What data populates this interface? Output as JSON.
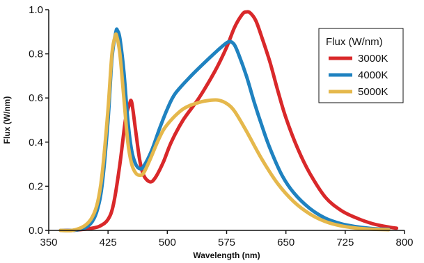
{
  "chart_data": {
    "type": "line",
    "xlabel": "Wavelength (nm)",
    "ylabel": "Flux (W/nm)",
    "xlim": [
      350,
      800
    ],
    "ylim": [
      0,
      1.0
    ],
    "x_ticks": [
      "350",
      "425",
      "500",
      "575",
      "650",
      "725",
      "800"
    ],
    "y_ticks": [
      "0.0",
      "0.2",
      "0.4",
      "0.6",
      "0.8",
      "1.0"
    ],
    "grid": false,
    "legend": {
      "title": "Flux (W/nm)",
      "position": "top-right"
    },
    "series": [
      {
        "name": "3000K",
        "color": "#d9282a",
        "x": [
          365,
          380,
          395,
          405,
          415,
          425,
          432,
          440,
          447,
          452,
          455,
          460,
          465,
          470,
          478,
          485,
          495,
          505,
          520,
          540,
          560,
          575,
          585,
          595,
          600,
          605,
          612,
          620,
          630,
          640,
          650,
          665,
          680,
          700,
          720,
          740,
          760,
          780,
          790
        ],
        "y": [
          0.0,
          0.0,
          0.005,
          0.01,
          0.02,
          0.05,
          0.12,
          0.3,
          0.5,
          0.57,
          0.58,
          0.45,
          0.32,
          0.25,
          0.22,
          0.24,
          0.31,
          0.4,
          0.5,
          0.6,
          0.72,
          0.83,
          0.92,
          0.98,
          0.99,
          0.985,
          0.95,
          0.87,
          0.76,
          0.63,
          0.51,
          0.37,
          0.26,
          0.15,
          0.09,
          0.055,
          0.03,
          0.015,
          0.01
        ]
      },
      {
        "name": "4000K",
        "color": "#1f82c0",
        "x": [
          365,
          380,
          395,
          405,
          412,
          418,
          425,
          430,
          435,
          437,
          440,
          445,
          450,
          455,
          460,
          465,
          470,
          480,
          490,
          500,
          510,
          530,
          550,
          565,
          575,
          580,
          585,
          590,
          600,
          610,
          620,
          630,
          645,
          660,
          680,
          700,
          720,
          740,
          760,
          780
        ],
        "y": [
          0.0,
          0.0,
          0.01,
          0.04,
          0.1,
          0.22,
          0.5,
          0.78,
          0.9,
          0.905,
          0.87,
          0.72,
          0.5,
          0.36,
          0.3,
          0.28,
          0.29,
          0.36,
          0.46,
          0.55,
          0.62,
          0.7,
          0.77,
          0.82,
          0.85,
          0.855,
          0.84,
          0.8,
          0.7,
          0.58,
          0.47,
          0.37,
          0.25,
          0.17,
          0.1,
          0.055,
          0.03,
          0.016,
          0.008,
          0.005
        ]
      },
      {
        "name": "5000K",
        "color": "#e5b84c",
        "x": [
          365,
          380,
          395,
          405,
          412,
          418,
          425,
          430,
          434,
          436,
          440,
          445,
          450,
          455,
          460,
          465,
          470,
          478,
          490,
          500,
          520,
          540,
          555,
          565,
          575,
          585,
          600,
          620,
          640,
          660,
          680,
          700,
          720,
          740,
          760,
          780
        ],
        "y": [
          0.0,
          0.0,
          0.02,
          0.06,
          0.13,
          0.27,
          0.55,
          0.8,
          0.88,
          0.88,
          0.8,
          0.6,
          0.4,
          0.3,
          0.26,
          0.25,
          0.26,
          0.32,
          0.42,
          0.48,
          0.55,
          0.58,
          0.59,
          0.59,
          0.575,
          0.54,
          0.45,
          0.32,
          0.21,
          0.13,
          0.075,
          0.04,
          0.02,
          0.01,
          0.005,
          0.003
        ]
      }
    ]
  }
}
